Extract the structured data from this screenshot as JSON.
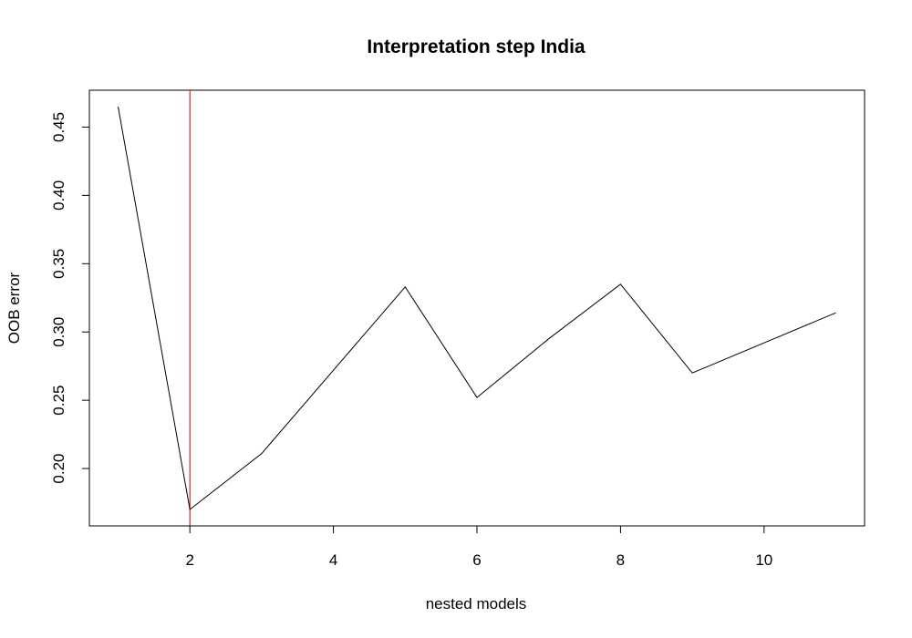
{
  "chart_data": {
    "type": "line",
    "title": "Interpretation step India",
    "xlabel": "nested models",
    "ylabel": "OOB error",
    "x": [
      1,
      2,
      3,
      4,
      5,
      6,
      7,
      8,
      9,
      10,
      11
    ],
    "series": [
      {
        "values": [
          0.465,
          0.17,
          0.211,
          0.272,
          0.333,
          0.252,
          0.295,
          0.335,
          0.27,
          0.292,
          0.314
        ],
        "color": "#000000"
      }
    ],
    "xlim": [
      0.6,
      11.4
    ],
    "ylim": [
      0.158,
      0.477
    ],
    "xticks": [
      2,
      4,
      6,
      8,
      10
    ],
    "yticks": [
      0.2,
      0.25,
      0.3,
      0.35,
      0.4,
      0.45
    ],
    "xtick_labels": [
      "2",
      "4",
      "6",
      "8",
      "10"
    ],
    "ytick_labels": [
      "0.20",
      "0.25",
      "0.30",
      "0.35",
      "0.40",
      "0.45"
    ],
    "vline": {
      "x": 2,
      "color": "#cc0000"
    },
    "grid": false,
    "legend": "none",
    "frame_color": "#000000"
  }
}
